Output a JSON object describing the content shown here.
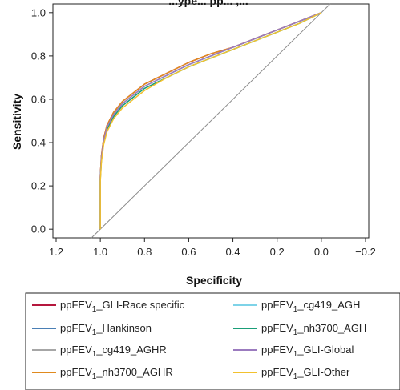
{
  "chart_data": {
    "type": "line",
    "title": "...ype... pp... ,...",
    "xlabel": "Specificity",
    "ylabel": "Sensitivity",
    "xlim": [
      1.2,
      -0.2
    ],
    "ylim": [
      0.0,
      1.0
    ],
    "x_reversed": true,
    "grid": false,
    "x_ticks": [
      "1.2",
      "1.0",
      "0.8",
      "0.6",
      "0.4",
      "0.2",
      "0.0",
      "−0.2"
    ],
    "x_tick_values": [
      1.2,
      1.0,
      0.8,
      0.6,
      0.4,
      0.2,
      0.0,
      -0.2
    ],
    "y_ticks": [
      "0.0",
      "0.2",
      "0.4",
      "0.6",
      "0.8",
      "1.0"
    ],
    "y_tick_values": [
      0.0,
      0.2,
      0.4,
      0.6,
      0.8,
      1.0
    ],
    "reference_line": {
      "color": "#8c8c8c",
      "x": [
        1.0,
        0.0
      ],
      "y": [
        0.0,
        1.0
      ]
    },
    "legend_placement": "bottom",
    "legend_rows": [
      {
        "left": {
          "prefix": "ppFEV",
          "sub": "1",
          "suffix": "_GLI-Race specific"
        },
        "right": {
          "prefix": "ppFEV",
          "sub": "1",
          "suffix": "_cg419_AGH"
        }
      },
      {
        "left": {
          "prefix": "ppFEV",
          "sub": "1",
          "suffix": "_Hankinson"
        },
        "right": {
          "prefix": "ppFEV",
          "sub": "1",
          "suffix": "_nh3700_AGH"
        }
      },
      {
        "left": {
          "prefix": "ppFEV",
          "sub": "1",
          "suffix": "_cg419_AGHR"
        },
        "right": {
          "prefix": "ppFEV",
          "sub": "1",
          "suffix": "_GLI-Global"
        }
      },
      {
        "left": {
          "prefix": "ppFEV",
          "sub": "1",
          "suffix": "_nh3700_AGHR"
        },
        "right": {
          "prefix": "ppFEV",
          "sub": "1",
          "suffix": "_GLI-Other"
        }
      }
    ],
    "series": [
      {
        "name": "ppFEV1_GLI-Race specific",
        "color": "#b5173d",
        "x": [
          1.0,
          1.0,
          0.995,
          0.985,
          0.97,
          0.94,
          0.9,
          0.85,
          0.8,
          0.7,
          0.6,
          0.5,
          0.4,
          0.3,
          0.2,
          0.1,
          0.0
        ],
        "y": [
          0.0,
          0.25,
          0.34,
          0.42,
          0.48,
          0.54,
          0.59,
          0.63,
          0.67,
          0.72,
          0.77,
          0.81,
          0.84,
          0.88,
          0.92,
          0.96,
          1.0
        ]
      },
      {
        "name": "ppFEV1_Hankinson",
        "color": "#4a7fb5",
        "x": [
          1.0,
          1.0,
          0.995,
          0.985,
          0.97,
          0.94,
          0.9,
          0.85,
          0.8,
          0.7,
          0.6,
          0.5,
          0.4,
          0.3,
          0.2,
          0.1,
          0.0
        ],
        "y": [
          0.0,
          0.24,
          0.33,
          0.41,
          0.47,
          0.53,
          0.58,
          0.62,
          0.66,
          0.71,
          0.76,
          0.8,
          0.84,
          0.88,
          0.92,
          0.96,
          1.0
        ]
      },
      {
        "name": "ppFEV1_cg419_AGHR",
        "color": "#a6a6a6",
        "x": [
          1.0,
          1.0,
          0.995,
          0.985,
          0.97,
          0.94,
          0.9,
          0.85,
          0.8,
          0.7,
          0.6,
          0.5,
          0.4,
          0.3,
          0.2,
          0.1,
          0.0
        ],
        "y": [
          0.0,
          0.24,
          0.33,
          0.41,
          0.47,
          0.53,
          0.58,
          0.62,
          0.66,
          0.71,
          0.76,
          0.8,
          0.84,
          0.88,
          0.92,
          0.96,
          1.0
        ]
      },
      {
        "name": "ppFEV1_nh3700_AGHR",
        "color": "#e08a1e",
        "x": [
          1.0,
          1.0,
          0.995,
          0.985,
          0.97,
          0.94,
          0.9,
          0.85,
          0.8,
          0.7,
          0.6,
          0.5,
          0.4,
          0.3,
          0.2,
          0.1,
          0.0
        ],
        "y": [
          0.0,
          0.25,
          0.34,
          0.42,
          0.48,
          0.54,
          0.59,
          0.63,
          0.67,
          0.72,
          0.77,
          0.81,
          0.84,
          0.88,
          0.92,
          0.96,
          1.0
        ]
      },
      {
        "name": "ppFEV1_cg419_AGH",
        "color": "#7ed3e8",
        "x": [
          1.0,
          1.0,
          0.995,
          0.985,
          0.97,
          0.94,
          0.9,
          0.85,
          0.8,
          0.7,
          0.6,
          0.5,
          0.4,
          0.3,
          0.2,
          0.1,
          0.0
        ],
        "y": [
          0.0,
          0.23,
          0.32,
          0.4,
          0.46,
          0.52,
          0.57,
          0.61,
          0.65,
          0.7,
          0.75,
          0.79,
          0.83,
          0.87,
          0.91,
          0.95,
          1.0
        ]
      },
      {
        "name": "ppFEV1_nh3700_AGH",
        "color": "#1a9e78",
        "x": [
          1.0,
          1.0,
          0.995,
          0.985,
          0.97,
          0.94,
          0.9,
          0.85,
          0.8,
          0.7,
          0.6,
          0.5,
          0.4,
          0.3,
          0.2,
          0.1,
          0.0
        ],
        "y": [
          0.0,
          0.23,
          0.32,
          0.4,
          0.46,
          0.52,
          0.57,
          0.61,
          0.65,
          0.7,
          0.75,
          0.79,
          0.83,
          0.87,
          0.91,
          0.95,
          1.0
        ]
      },
      {
        "name": "ppFEV1_GLI-Global",
        "color": "#9b7bbf",
        "x": [
          1.0,
          1.0,
          0.995,
          0.985,
          0.97,
          0.94,
          0.9,
          0.85,
          0.8,
          0.7,
          0.6,
          0.5,
          0.4,
          0.3,
          0.2,
          0.1,
          0.0
        ],
        "y": [
          0.0,
          0.24,
          0.33,
          0.41,
          0.47,
          0.53,
          0.58,
          0.62,
          0.66,
          0.71,
          0.76,
          0.8,
          0.84,
          0.88,
          0.92,
          0.96,
          1.0
        ]
      },
      {
        "name": "ppFEV1_GLI-Other",
        "color": "#f2c12e",
        "x": [
          1.0,
          1.0,
          0.995,
          0.985,
          0.97,
          0.94,
          0.9,
          0.85,
          0.8,
          0.7,
          0.6,
          0.5,
          0.4,
          0.3,
          0.2,
          0.1,
          0.0
        ],
        "y": [
          0.0,
          0.22,
          0.31,
          0.39,
          0.45,
          0.51,
          0.56,
          0.6,
          0.64,
          0.7,
          0.75,
          0.79,
          0.83,
          0.87,
          0.91,
          0.95,
          1.0
        ]
      }
    ]
  }
}
